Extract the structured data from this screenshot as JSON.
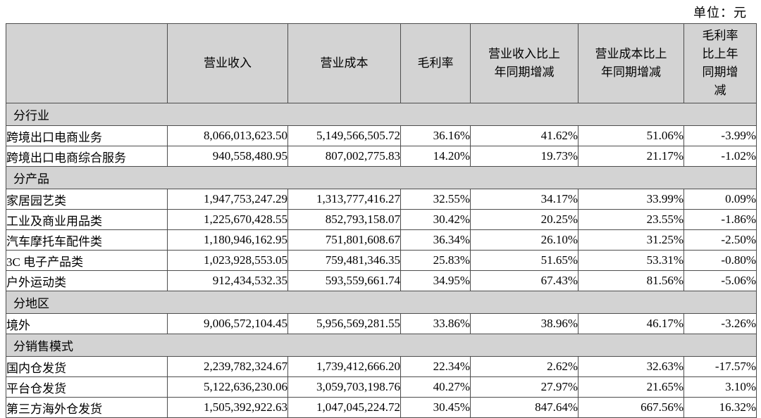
{
  "unit_label": "单位：元",
  "colors": {
    "header_bg": "#d3d3d3",
    "border": "#4d4d4d",
    "text": "#000000",
    "page_bg": "#ffffff"
  },
  "table": {
    "columns": [
      "",
      "营业收入",
      "营业成本",
      "毛利率",
      "营业收入比上\n年同期增减",
      "营业成本比上\n年同期增减",
      "毛利率\n比上年\n同期增\n减"
    ],
    "sections": [
      {
        "title": "分行业",
        "rows": [
          [
            "跨境出口电商业务",
            "8,066,013,623.50",
            "5,149,566,505.72",
            "36.16%",
            "41.62%",
            "51.06%",
            "-3.99%"
          ],
          [
            "跨境出口电商综合服务",
            "940,558,480.95",
            "807,002,775.83",
            "14.20%",
            "19.73%",
            "21.17%",
            "-1.02%"
          ]
        ]
      },
      {
        "title": "分产品",
        "rows": [
          [
            "家居园艺类",
            "1,947,753,247.29",
            "1,313,777,416.27",
            "32.55%",
            "34.17%",
            "33.99%",
            "0.09%"
          ],
          [
            "工业及商业用品类",
            "1,225,670,428.55",
            "852,793,158.07",
            "30.42%",
            "20.25%",
            "23.55%",
            "-1.86%"
          ],
          [
            "汽车摩托车配件类",
            "1,180,946,162.95",
            "751,801,608.67",
            "36.34%",
            "26.10%",
            "31.25%",
            "-2.50%"
          ],
          [
            "3C 电子产品类",
            "1,023,928,553.05",
            "759,481,346.35",
            "25.83%",
            "51.65%",
            "53.31%",
            "-0.80%"
          ],
          [
            "户外运动类",
            "912,434,532.35",
            "593,559,661.74",
            "34.95%",
            "67.43%",
            "81.56%",
            "-5.06%"
          ]
        ]
      },
      {
        "title": "分地区",
        "rows": [
          [
            "境外",
            "9,006,572,104.45",
            "5,956,569,281.55",
            "33.86%",
            "38.96%",
            "46.17%",
            "-3.26%"
          ]
        ]
      },
      {
        "title": "分销售模式",
        "rows": [
          [
            "国内仓发货",
            "2,239,782,324.67",
            "1,739,412,666.20",
            "22.34%",
            "2.62%",
            "32.63%",
            "-17.57%"
          ],
          [
            "平台仓发货",
            "5,122,636,230.06",
            "3,059,703,198.76",
            "40.27%",
            "27.97%",
            "21.65%",
            "3.10%"
          ],
          [
            "第三方海外仓发货",
            "1,505,392,922.63",
            "1,047,045,224.72",
            "30.45%",
            "847.64%",
            "667.56%",
            "16.32%"
          ]
        ]
      }
    ]
  }
}
